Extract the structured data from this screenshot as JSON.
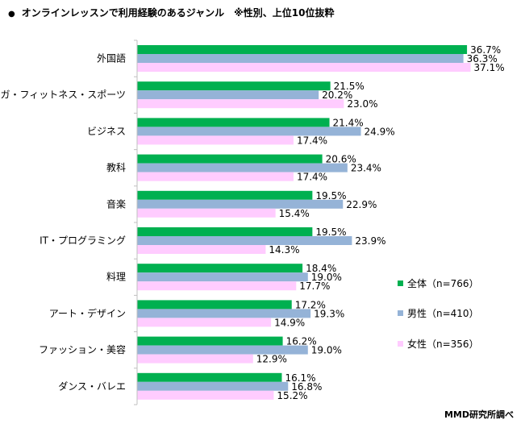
{
  "chart_data": {
    "type": "bar",
    "orientation": "horizontal",
    "title": "オンラインレッスンで利用経験のあるジャンル　※性別、上位10位抜粋",
    "categories": [
      "外国語",
      "ヨガ・フィットネス・スポーツ",
      "ビジネス",
      "教科",
      "音楽",
      "IT・プログラミング",
      "料理",
      "アート・デザイン",
      "ファッション・美容",
      "ダンス・バレエ"
    ],
    "series": [
      {
        "name": "全体（n=766）",
        "color": "#00b050",
        "values": [
          36.7,
          21.5,
          21.4,
          20.6,
          19.5,
          19.5,
          18.4,
          17.2,
          16.2,
          16.1
        ]
      },
      {
        "name": "男性（n=410）",
        "color": "#95b3d7",
        "values": [
          36.3,
          20.2,
          24.9,
          23.4,
          22.9,
          23.9,
          19.0,
          19.3,
          19.0,
          16.8
        ]
      },
      {
        "name": "女性（n=356）",
        "color": "#ffccff",
        "values": [
          37.1,
          23.0,
          17.4,
          17.4,
          15.4,
          14.3,
          17.7,
          14.9,
          12.9,
          15.2
        ]
      }
    ],
    "value_suffix": "%",
    "xlim": [
      0,
      37.5
    ],
    "legend_position": "right"
  },
  "source": "MMD研究所調べ"
}
